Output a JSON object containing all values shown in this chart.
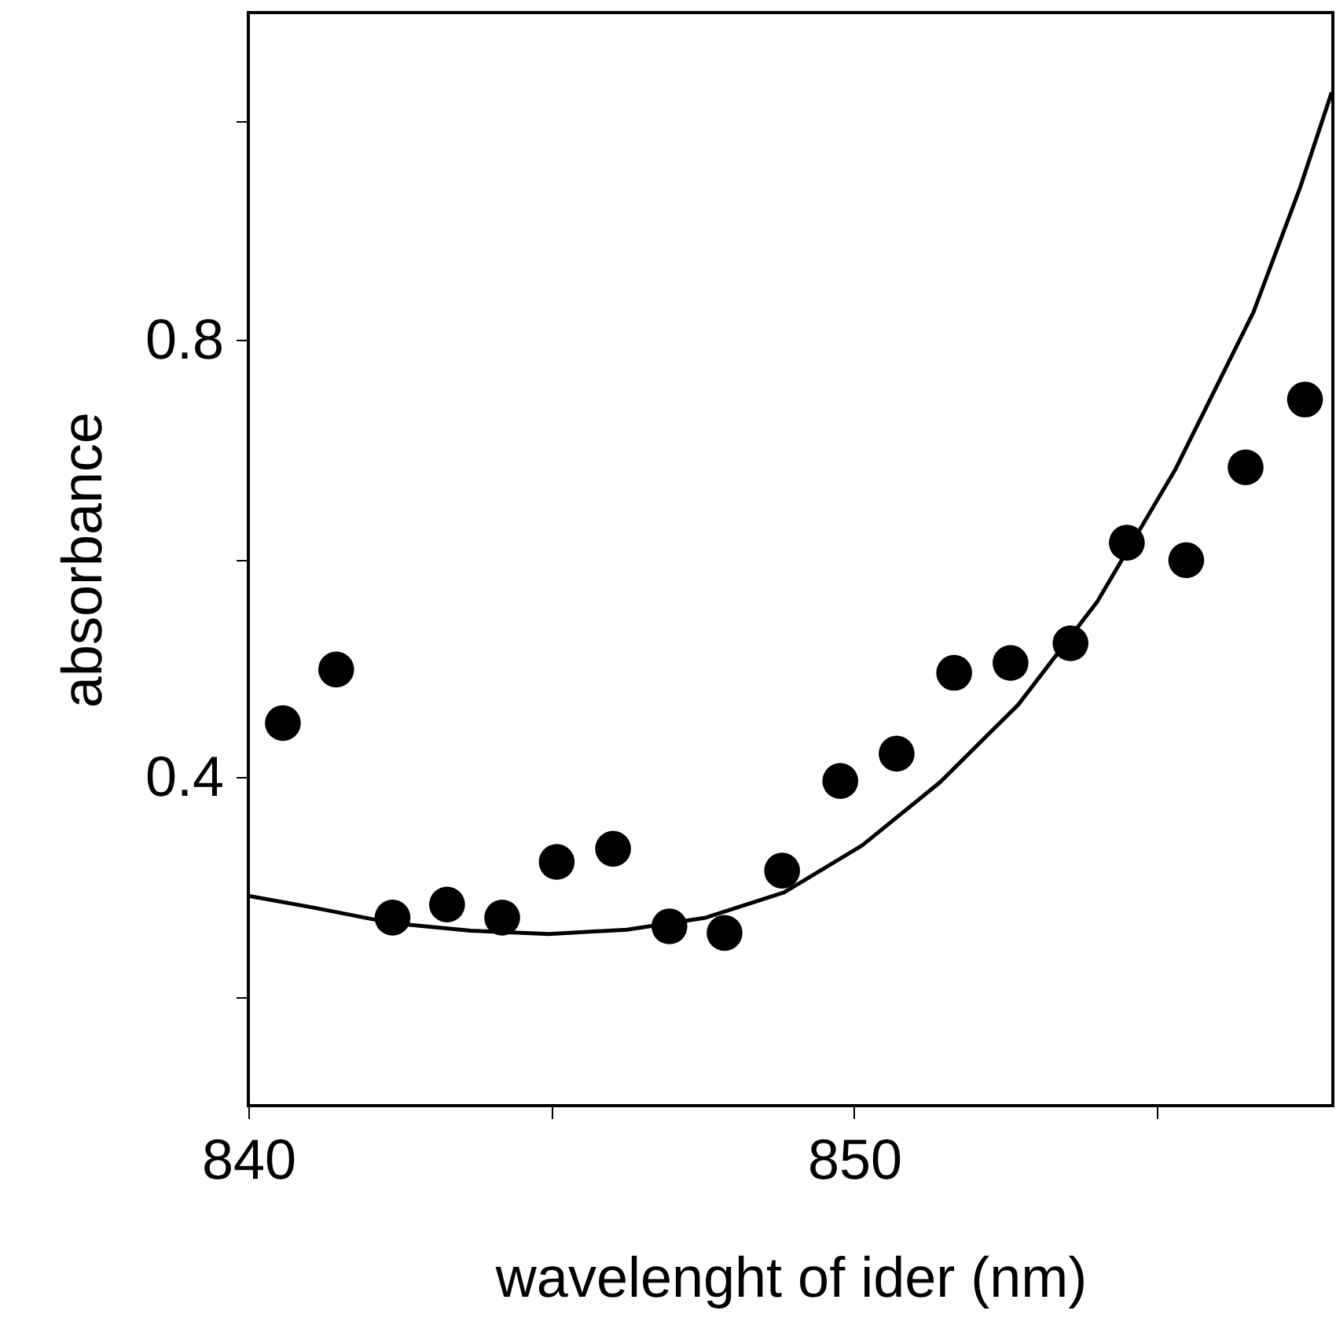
{
  "chart_data": {
    "type": "scatter",
    "xlabel": "wavelenght of ider (nm)",
    "ylabel": "absorbance",
    "xlim": [
      840,
      857.9
    ],
    "ylim": [
      0.1,
      1.1
    ],
    "xticks": [
      840,
      {
        "value": 845,
        "label": null
      },
      850,
      {
        "value": 855,
        "label": null
      }
    ],
    "yticks": [
      {
        "value": 0.2,
        "label": null
      },
      0.4,
      {
        "value": 0.6,
        "label": null
      },
      0.8,
      {
        "value": 1.0,
        "label": null
      }
    ],
    "grid": false,
    "series": [
      {
        "marker": "circle",
        "color": "#000000",
        "x": [
          840.57,
          841.45,
          842.38,
          843.28,
          844.19,
          845.09,
          846.02,
          846.95,
          847.86,
          848.81,
          849.77,
          850.7,
          851.65,
          852.58,
          853.57,
          854.5,
          855.48,
          856.46,
          857.44
        ],
        "values": [
          0.45,
          0.499,
          0.272,
          0.284,
          0.272,
          0.323,
          0.335,
          0.264,
          0.258,
          0.315,
          0.397,
          0.422,
          0.496,
          0.505,
          0.523,
          0.615,
          0.599,
          0.684,
          0.746
        ]
      },
      {
        "type": "line",
        "color": "#000000",
        "line_style": "solid",
        "x": [
          840,
          841.09,
          842.38,
          843.67,
          844.96,
          846.25,
          847.55,
          848.84,
          850.13,
          851.42,
          852.71,
          854.01,
          855.3,
          856.59,
          857.36,
          857.88
        ],
        "values": [
          0.292,
          0.281,
          0.267,
          0.26,
          0.257,
          0.261,
          0.272,
          0.295,
          0.338,
          0.396,
          0.467,
          0.561,
          0.682,
          0.826,
          0.94,
          1.027
        ]
      }
    ]
  }
}
